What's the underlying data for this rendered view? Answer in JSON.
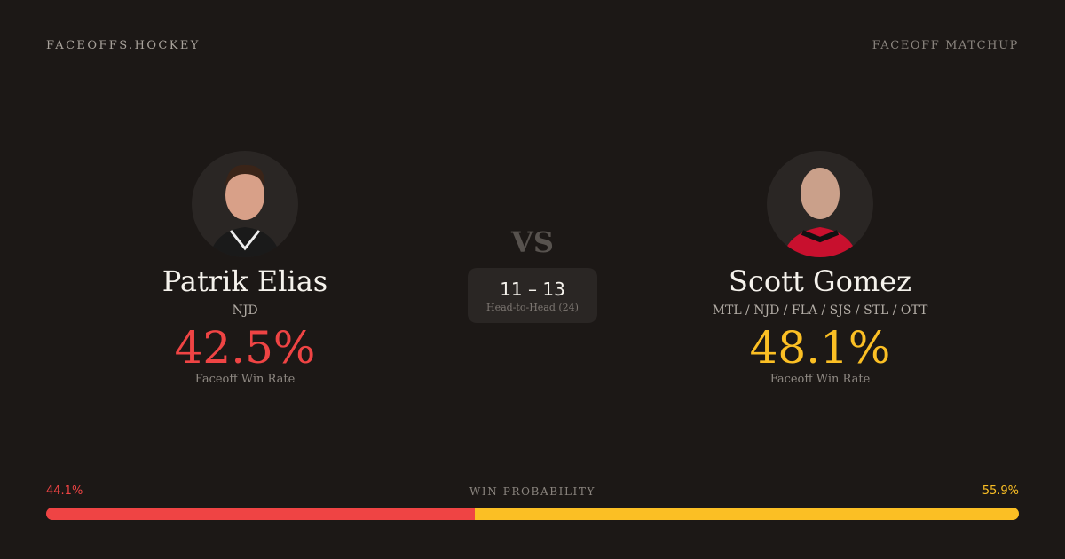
{
  "header": {
    "brand": "FACEOFFS.HOCKEY",
    "tag": "FACEOFF MATCHUP"
  },
  "colors": {
    "player1": "#ef4444",
    "player2": "#fbbf24"
  },
  "player1": {
    "name": "Patrik Elias",
    "team": "NJD",
    "win_rate": "42.5%",
    "win_rate_label": "Faceoff Win Rate",
    "avatar_icon": "player-photo"
  },
  "player2": {
    "name": "Scott Gomez",
    "team": "MTL / NJD / FLA / SJS / STL / OTT",
    "win_rate": "48.1%",
    "win_rate_label": "Faceoff Win Rate",
    "avatar_icon": "player-photo"
  },
  "vs": "VS",
  "head_to_head": {
    "score": "11 – 13",
    "label": "Head-to-Head (24)"
  },
  "win_probability": {
    "label": "WIN PROBABILITY",
    "player1": "44.1%",
    "player2": "55.9%",
    "player1_value": 44.1,
    "player2_value": 55.9
  }
}
